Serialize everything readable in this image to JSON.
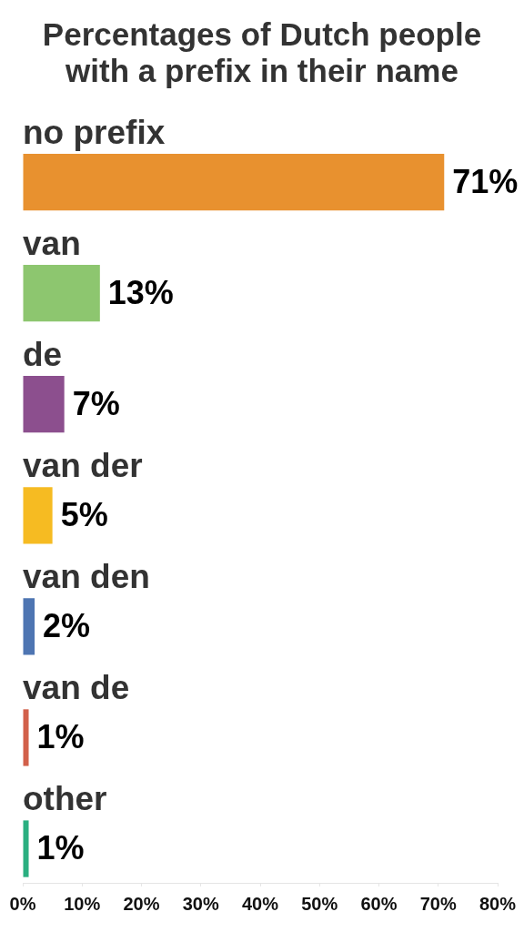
{
  "chart_data": {
    "type": "bar",
    "orientation": "horizontal",
    "title": "Percentages of Dutch people with a prefix in their name",
    "categories": [
      "no prefix",
      "van",
      "de",
      "van der",
      "van den",
      "van de",
      "other"
    ],
    "values": [
      71,
      13,
      7,
      5,
      2,
      1,
      1
    ],
    "colors": [
      "#e8912f",
      "#8dc66f",
      "#8c4f8e",
      "#f6bb22",
      "#4e75b2",
      "#d2604a",
      "#2aaf80"
    ],
    "value_labels": [
      "71%",
      "13%",
      "7%",
      "5%",
      "2%",
      "1%",
      "1%"
    ],
    "xlim": [
      0,
      80
    ],
    "xticks": [
      {
        "value": 0,
        "label": "0%"
      },
      {
        "value": 10,
        "label": "10%"
      },
      {
        "value": 20,
        "label": "20%"
      },
      {
        "value": 30,
        "label": "30%"
      },
      {
        "value": 40,
        "label": "40%"
      },
      {
        "value": 50,
        "label": "50%"
      },
      {
        "value": 60,
        "label": "60%"
      },
      {
        "value": 70,
        "label": "70%"
      },
      {
        "value": 80,
        "label": "80%"
      }
    ],
    "grid": false,
    "legend": false
  }
}
